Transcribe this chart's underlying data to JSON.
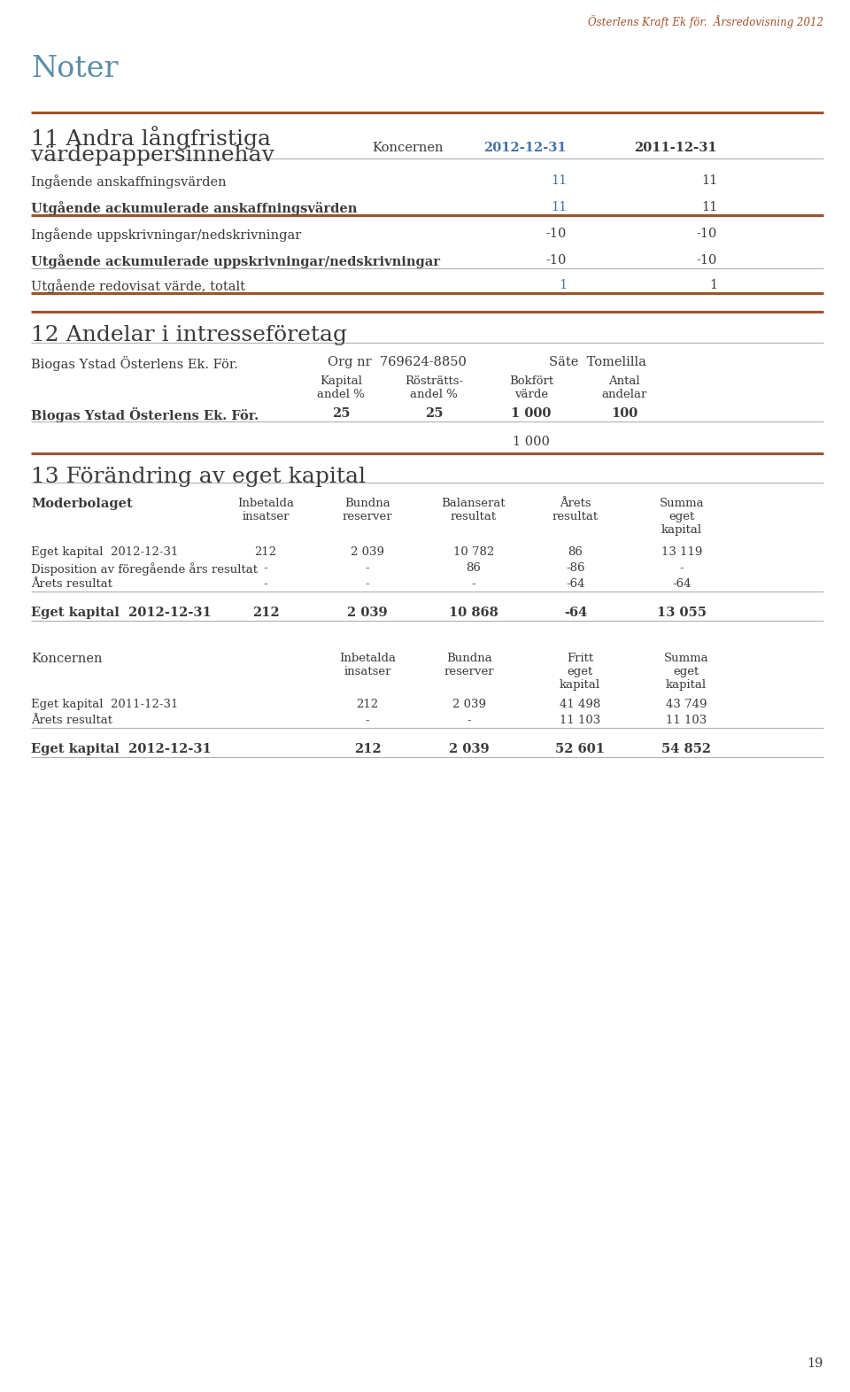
{
  "bg_color": "#ffffff",
  "text_color": "#3a3a3a",
  "accent_color": "#a0522d",
  "blue_color": "#4472a8",
  "section_title_color": "#5a8fa5",
  "top_right_text": "Österlens Kraft Ek för.  Årsredovisning 2012",
  "top_right_color": "#a0522d",
  "noter_title": "Noter",
  "noter_color": "#5a8fa5",
  "section11_title_line1": "11 Andra långfristiga",
  "section11_title_line2": "värdepappersinnehav",
  "section11_col1": "Koncernen",
  "section11_col2": "2012-12-31",
  "section11_col3": "2011-12-31",
  "table11_rows": [
    {
      "label": "Ingående anskaffningsvärden",
      "bold": false,
      "underline": false,
      "col2": "11",
      "col3": "11",
      "col2_blue": true,
      "thick_under": false
    },
    {
      "label": "Utgående ackumulerade anskaffningsvärden",
      "bold": true,
      "underline": false,
      "col2": "11",
      "col3": "11",
      "col2_blue": true,
      "thick_under": true
    },
    {
      "label": "Ingående uppskrivningar/nedskrivningar",
      "bold": false,
      "underline": false,
      "col2": "-10",
      "col3": "-10",
      "col2_blue": false,
      "thick_under": false
    },
    {
      "label": "Utgående ackumulerade uppskrivningar/nedskrivningar",
      "bold": true,
      "underline": false,
      "col2": "-10",
      "col3": "-10",
      "col2_blue": false,
      "thick_under": false
    },
    {
      "label": "Utgående redovisat värde, totalt",
      "bold": false,
      "underline": false,
      "col2": "1",
      "col3": "1",
      "col2_blue": true,
      "thick_under": true
    }
  ],
  "section12_title": "12 Andelar i intresseföretag",
  "section12_company": "Biogas Ystad Österlens Ek. För.",
  "section12_orgnr": "Org nr  769624-8850",
  "section12_sate": "Säte  Tomelilla",
  "section12_headers": [
    "Kapital\nandel %",
    "Rösträtts-\nandel %",
    "Bokfört\nvärde",
    "Antal\nandelar"
  ],
  "section12_row": {
    "label": "Biogas Ystad Österlens Ek. För.",
    "vals": [
      "25",
      "25",
      "1 000",
      "100"
    ]
  },
  "section12_total": "1 000",
  "section13_title": "13 Förändring av eget kapital",
  "moderbolaget_label": "Moderbolaget",
  "moderbolaget_headers": [
    "Inbetalda\ninsatser",
    "Bundna\nreserver",
    "Balanserat\nresultat",
    "Årets\nresultat",
    "Summa\neget\nkapital"
  ],
  "moderbolaget_rows": [
    {
      "label": "Eget kapital  2012-12-31",
      "bold": false,
      "vals": [
        "212",
        "2 039",
        "10 782",
        "86",
        "13 119"
      ]
    },
    {
      "label": "Disposition av föregående års resultat",
      "bold": false,
      "vals": [
        "-",
        "-",
        "86",
        "-86",
        "-"
      ]
    },
    {
      "label": "Årets resultat",
      "bold": false,
      "vals": [
        "-",
        "-",
        "-",
        "-64",
        "-64"
      ]
    }
  ],
  "moderbolaget_total": {
    "label": "Eget kapital  2012-12-31",
    "vals": [
      "212",
      "2 039",
      "10 868",
      "-64",
      "13 055"
    ]
  },
  "koncernen_label": "Koncernen",
  "koncernen_headers": [
    "Inbetalda\ninsatser",
    "Bundna\nreserver",
    "Fritt\neget\nkapital",
    "Summa\neget\nkapital"
  ],
  "koncernen_rows": [
    {
      "label": "Eget kapital  2011-12-31",
      "bold": false,
      "vals": [
        "212",
        "2 039",
        "41 498",
        "43 749"
      ]
    },
    {
      "label": "Årets resultat",
      "bold": false,
      "vals": [
        "-",
        "-",
        "11 103",
        "11 103"
      ]
    }
  ],
  "koncernen_total": {
    "label": "Eget kapital  2012-12-31",
    "vals": [
      "212",
      "2 039",
      "52 601",
      "54 852"
    ]
  },
  "page_number": "19"
}
